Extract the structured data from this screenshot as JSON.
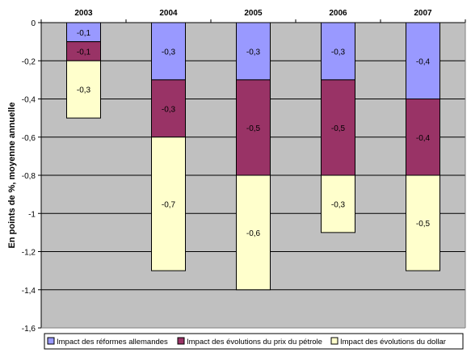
{
  "chart_data": {
    "type": "bar",
    "stacked": true,
    "categories": [
      "2003",
      "2004",
      "2005",
      "2006",
      "2007"
    ],
    "series": [
      {
        "name": "Impact des réformes allemandes",
        "color": "#9999FF",
        "values": [
          -0.1,
          -0.3,
          -0.3,
          -0.3,
          -0.4
        ],
        "labels": [
          "-0,1",
          "-0,3",
          "-0,3",
          "-0,3",
          "-0,4"
        ]
      },
      {
        "name": "Impact des évolutions du prix du pétrole",
        "color": "#993366",
        "values": [
          -0.1,
          -0.3,
          -0.5,
          -0.5,
          -0.4
        ],
        "labels": [
          "-0,1",
          "-0,3",
          "-0,5",
          "-0,5",
          "-0,4"
        ]
      },
      {
        "name": "Impact des évolutions du dollar",
        "color": "#FFFFCC",
        "values": [
          -0.3,
          -0.7,
          -0.6,
          -0.3,
          -0.5
        ],
        "labels": [
          "-0,3",
          "-0,7",
          "-0,6",
          "-0,3",
          "-0,5"
        ]
      }
    ],
    "ylabel": "En points de %, moyenne annuelle",
    "ylim": [
      -1.6,
      0
    ],
    "yticks": [
      0,
      -0.2,
      -0.4,
      -0.6,
      -0.8,
      -1,
      -1.2,
      -1.4,
      -1.6
    ],
    "ytick_labels": [
      "0",
      "-0,2",
      "-0,4",
      "-0,6",
      "-0,8",
      "-1",
      "-1,2",
      "-1,4",
      "-1,6"
    ],
    "x_axis_position": "top",
    "grid": true,
    "plot_background": "#C0C0C0",
    "legend_position": "bottom"
  }
}
